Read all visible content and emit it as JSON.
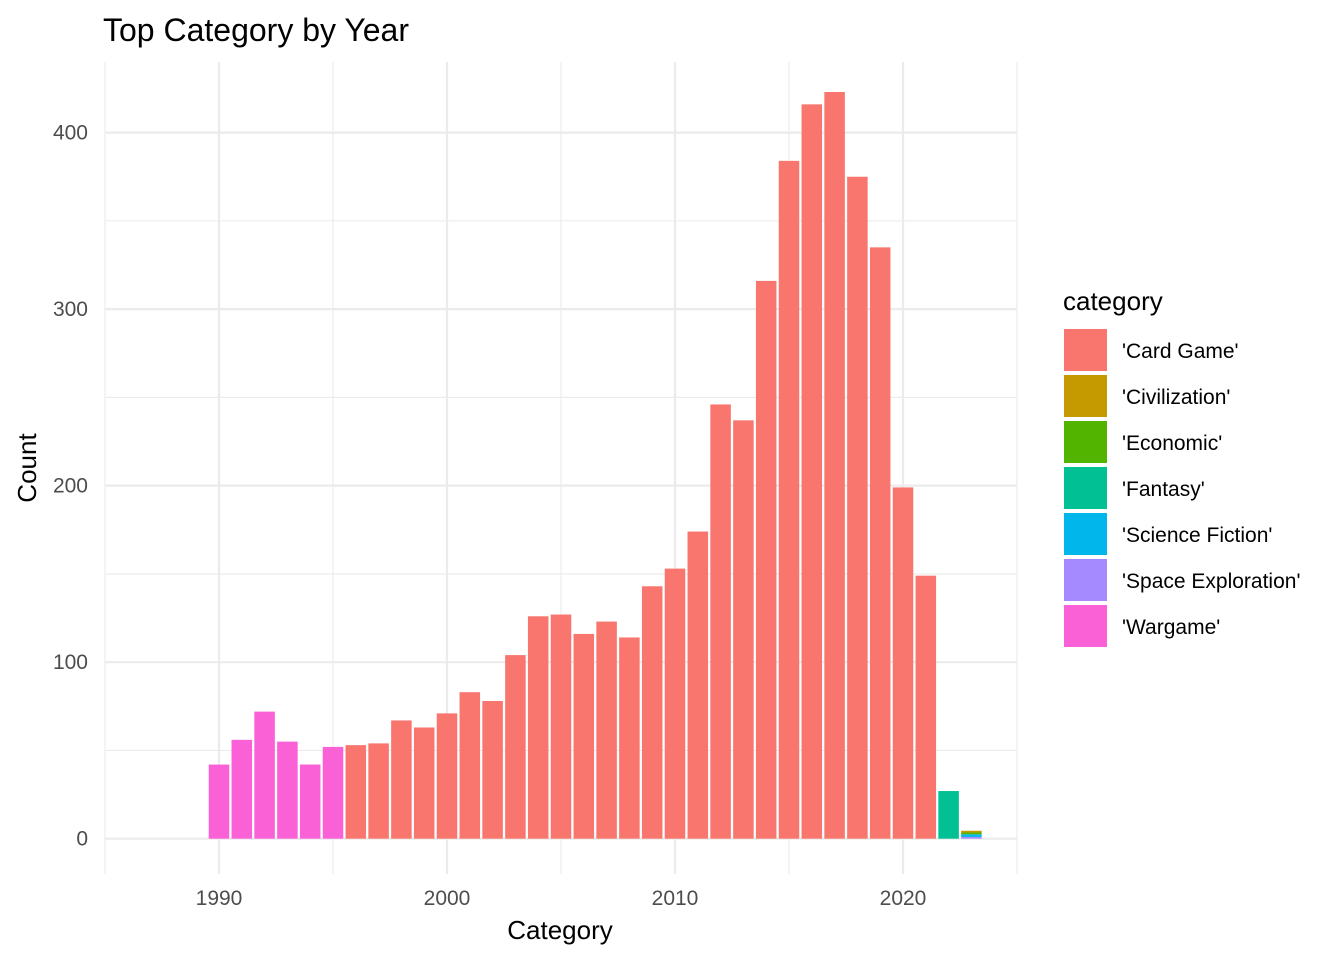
{
  "chart_data": {
    "type": "bar",
    "title": "Top Category by Year",
    "xlabel": "Category",
    "ylabel": "Count",
    "xlim": [
      1985,
      2025
    ],
    "ylim": [
      -20,
      440
    ],
    "x_ticks": [
      1990,
      2000,
      2010,
      2020
    ],
    "y_ticks": [
      0,
      100,
      200,
      300,
      400
    ],
    "x_tick_labels": [
      "1990",
      "2000",
      "2010",
      "2020"
    ],
    "y_tick_labels": [
      "0",
      "100",
      "200",
      "300",
      "400"
    ],
    "grid": true,
    "legend": {
      "title": "category",
      "position": "right",
      "entries": [
        {
          "label": "'Card Game'",
          "color": "#F8766D"
        },
        {
          "label": "'Civilization'",
          "color": "#C49A00"
        },
        {
          "label": "'Economic'",
          "color": "#53B400"
        },
        {
          "label": "'Fantasy'",
          "color": "#00C094"
        },
        {
          "label": "'Science Fiction'",
          "color": "#00B6EB"
        },
        {
          "label": "'Space Exploration'",
          "color": "#A58AFF"
        },
        {
          "label": "'Wargame'",
          "color": "#FB61D7"
        }
      ]
    },
    "bars": [
      {
        "year": 1990,
        "segments": [
          {
            "category": "'Wargame'",
            "value": 42
          }
        ]
      },
      {
        "year": 1991,
        "segments": [
          {
            "category": "'Wargame'",
            "value": 56
          }
        ]
      },
      {
        "year": 1992,
        "segments": [
          {
            "category": "'Wargame'",
            "value": 72
          }
        ]
      },
      {
        "year": 1993,
        "segments": [
          {
            "category": "'Wargame'",
            "value": 55
          }
        ]
      },
      {
        "year": 1994,
        "segments": [
          {
            "category": "'Wargame'",
            "value": 42
          }
        ]
      },
      {
        "year": 1995,
        "segments": [
          {
            "category": "'Wargame'",
            "value": 52
          }
        ]
      },
      {
        "year": 1996,
        "segments": [
          {
            "category": "'Card Game'",
            "value": 53
          }
        ]
      },
      {
        "year": 1997,
        "segments": [
          {
            "category": "'Card Game'",
            "value": 54
          }
        ]
      },
      {
        "year": 1998,
        "segments": [
          {
            "category": "'Card Game'",
            "value": 67
          }
        ]
      },
      {
        "year": 1999,
        "segments": [
          {
            "category": "'Card Game'",
            "value": 63
          }
        ]
      },
      {
        "year": 2000,
        "segments": [
          {
            "category": "'Card Game'",
            "value": 71
          }
        ]
      },
      {
        "year": 2001,
        "segments": [
          {
            "category": "'Card Game'",
            "value": 83
          }
        ]
      },
      {
        "year": 2002,
        "segments": [
          {
            "category": "'Card Game'",
            "value": 78
          }
        ]
      },
      {
        "year": 2003,
        "segments": [
          {
            "category": "'Card Game'",
            "value": 104
          }
        ]
      },
      {
        "year": 2004,
        "segments": [
          {
            "category": "'Card Game'",
            "value": 126
          }
        ]
      },
      {
        "year": 2005,
        "segments": [
          {
            "category": "'Card Game'",
            "value": 127
          }
        ]
      },
      {
        "year": 2006,
        "segments": [
          {
            "category": "'Card Game'",
            "value": 116
          }
        ]
      },
      {
        "year": 2007,
        "segments": [
          {
            "category": "'Card Game'",
            "value": 123
          }
        ]
      },
      {
        "year": 2008,
        "segments": [
          {
            "category": "'Card Game'",
            "value": 114
          }
        ]
      },
      {
        "year": 2009,
        "segments": [
          {
            "category": "'Card Game'",
            "value": 143
          }
        ]
      },
      {
        "year": 2010,
        "segments": [
          {
            "category": "'Card Game'",
            "value": 153
          }
        ]
      },
      {
        "year": 2011,
        "segments": [
          {
            "category": "'Card Game'",
            "value": 174
          }
        ]
      },
      {
        "year": 2012,
        "segments": [
          {
            "category": "'Card Game'",
            "value": 246
          }
        ]
      },
      {
        "year": 2013,
        "segments": [
          {
            "category": "'Card Game'",
            "value": 237
          }
        ]
      },
      {
        "year": 2014,
        "segments": [
          {
            "category": "'Card Game'",
            "value": 316
          }
        ]
      },
      {
        "year": 2015,
        "segments": [
          {
            "category": "'Card Game'",
            "value": 384
          }
        ]
      },
      {
        "year": 2016,
        "segments": [
          {
            "category": "'Card Game'",
            "value": 416
          }
        ]
      },
      {
        "year": 2017,
        "segments": [
          {
            "category": "'Card Game'",
            "value": 423
          }
        ]
      },
      {
        "year": 2018,
        "segments": [
          {
            "category": "'Card Game'",
            "value": 375
          }
        ]
      },
      {
        "year": 2019,
        "segments": [
          {
            "category": "'Card Game'",
            "value": 335
          }
        ]
      },
      {
        "year": 2020,
        "segments": [
          {
            "category": "'Card Game'",
            "value": 199
          }
        ]
      },
      {
        "year": 2021,
        "segments": [
          {
            "category": "'Card Game'",
            "value": 149
          }
        ]
      },
      {
        "year": 2022,
        "segments": [
          {
            "category": "'Fantasy'",
            "value": 27
          }
        ]
      },
      {
        "year": 2023,
        "segments": [
          {
            "category": "'Space Exploration'",
            "value": 1
          },
          {
            "category": "'Science Fiction'",
            "value": 1.5
          },
          {
            "category": "'Economic'",
            "value": 1
          },
          {
            "category": "'Civilization'",
            "value": 1
          }
        ]
      }
    ]
  }
}
